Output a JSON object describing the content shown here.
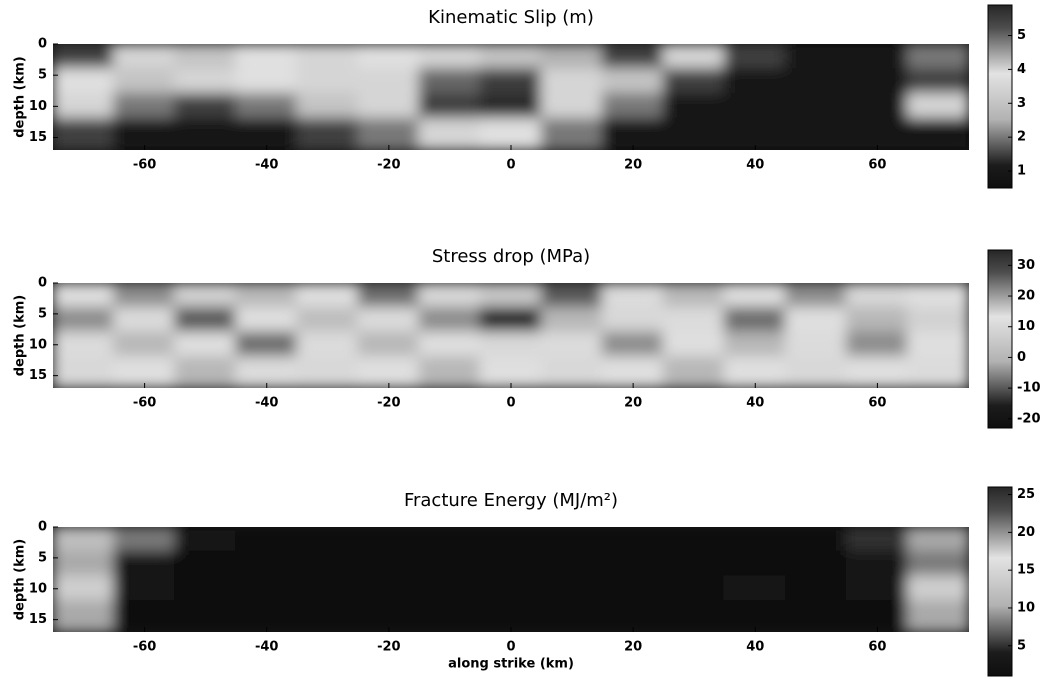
{
  "chart_data": [
    {
      "type": "heatmap",
      "title": "Kinematic Slip (m)",
      "ylabel": "depth (km)",
      "x": [
        -70,
        -60,
        -50,
        -40,
        -30,
        -20,
        -10,
        0,
        10,
        20,
        30,
        40,
        50,
        60,
        70
      ],
      "y": [
        2,
        6,
        10,
        14
      ],
      "z": [
        [
          1.5,
          3.5,
          3,
          3.8,
          3.5,
          3.8,
          4,
          3,
          2.5,
          1.5,
          3.5,
          1.5,
          1,
          1,
          2
        ],
        [
          3.8,
          3,
          3.5,
          3.8,
          4,
          3.5,
          5,
          5.5,
          4,
          3,
          1.5,
          1,
          1,
          1,
          1.5
        ],
        [
          3.5,
          2,
          1.5,
          2,
          3,
          3.5,
          5.5,
          5.8,
          3.5,
          2,
          1,
          1,
          1,
          1,
          3.5
        ],
        [
          1.5,
          1,
          1,
          1,
          1.5,
          2,
          3.5,
          3.8,
          2,
          1,
          1,
          1,
          1,
          1,
          1
        ]
      ],
      "xlim": [
        -75,
        75
      ],
      "ylim": [
        0,
        17
      ],
      "xticks": [
        -60,
        -40,
        -20,
        0,
        20,
        40,
        60
      ],
      "yticks": [
        0,
        5,
        10,
        15
      ],
      "colormap": "jet",
      "clim": [
        0.5,
        5.9
      ],
      "cticks": [
        1,
        2,
        3,
        4,
        5
      ]
    },
    {
      "type": "heatmap",
      "title": "Stress drop (MPa)",
      "ylabel": "depth (km)",
      "x": [
        -70,
        -60,
        -50,
        -40,
        -30,
        -20,
        -10,
        0,
        10,
        20,
        30,
        40,
        50,
        60,
        70
      ],
      "y": [
        2,
        6,
        10,
        14
      ],
      "z": [
        [
          12,
          -5,
          15,
          0,
          12,
          -8,
          10,
          5,
          -10,
          14,
          0,
          12,
          -5,
          10,
          12
        ],
        [
          -5,
          14,
          -10,
          12,
          2,
          14,
          -5,
          -15,
          0,
          10,
          14,
          -8,
          12,
          0,
          15
        ],
        [
          14,
          0,
          12,
          -8,
          14,
          0,
          12,
          10,
          14,
          -5,
          12,
          0,
          14,
          -5,
          12
        ],
        [
          10,
          12,
          0,
          14,
          10,
          12,
          0,
          12,
          10,
          12,
          0,
          12,
          10,
          12,
          14
        ]
      ],
      "xlim": [
        -75,
        75
      ],
      "ylim": [
        0,
        17
      ],
      "xticks": [
        -60,
        -40,
        -20,
        0,
        20,
        40,
        60
      ],
      "yticks": [
        0,
        5,
        10,
        15
      ],
      "colormap": "jet",
      "clim": [
        -23,
        35
      ],
      "cticks": [
        -20,
        -10,
        0,
        10,
        20,
        30
      ]
    },
    {
      "type": "heatmap",
      "title": "Fracture Energy (MJ/m²)",
      "ylabel": "depth (km)",
      "xlabel": "along strike (km)",
      "x": [
        -70,
        -60,
        -50,
        -40,
        -30,
        -20,
        -10,
        0,
        10,
        20,
        30,
        40,
        50,
        60,
        70
      ],
      "y": [
        2,
        6,
        10,
        14
      ],
      "z": [
        [
          12,
          8,
          2,
          1,
          1,
          1,
          1,
          1,
          1,
          1,
          1,
          1,
          1,
          5,
          10
        ],
        [
          10,
          2,
          1,
          1,
          1,
          1,
          1,
          1,
          1,
          1,
          1,
          1,
          1,
          2,
          8
        ],
        [
          14,
          3,
          1,
          1,
          1,
          1,
          1,
          1,
          1,
          1,
          1,
          3,
          1,
          2,
          14
        ],
        [
          10,
          1,
          1,
          1,
          1,
          1,
          1,
          1,
          1,
          1,
          1,
          1,
          1,
          1,
          10
        ]
      ],
      "xlim": [
        -75,
        75
      ],
      "ylim": [
        0,
        17
      ],
      "xticks": [
        -60,
        -40,
        -20,
        0,
        20,
        40,
        60
      ],
      "yticks": [
        0,
        5,
        10,
        15
      ],
      "colormap": "jet",
      "clim": [
        1,
        26
      ],
      "cticks": [
        5,
        10,
        15,
        20,
        25
      ]
    }
  ]
}
